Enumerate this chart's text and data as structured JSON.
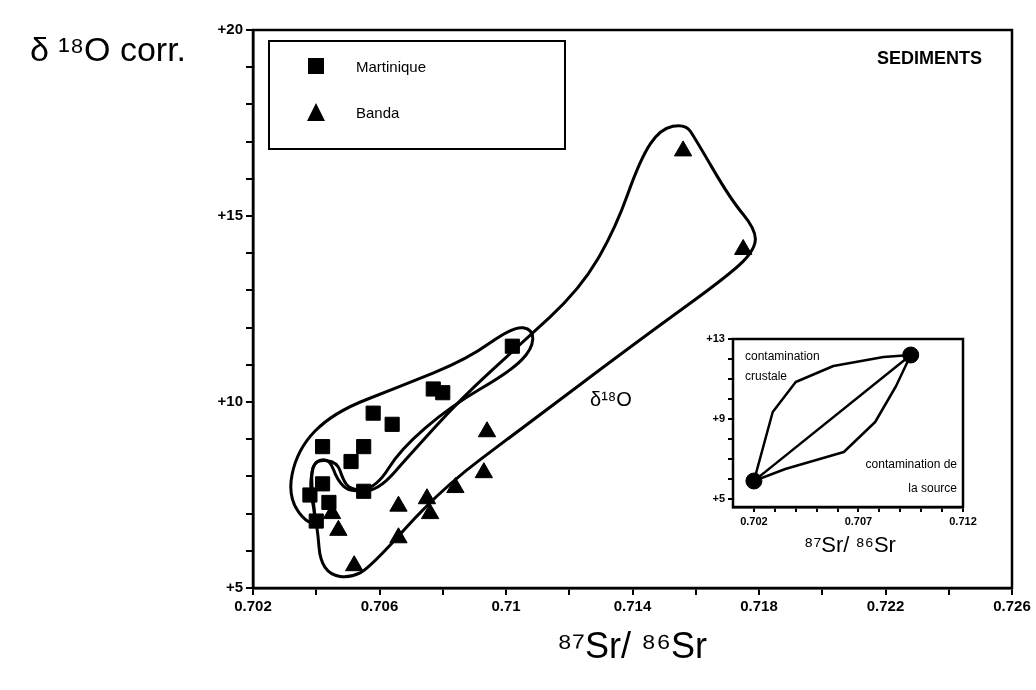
{
  "chart_data": [
    {
      "type": "scatter",
      "xlabel": "⁸⁷Sr/ ⁸⁶Sr",
      "ylabel": "δ ¹⁸O corr.",
      "annotations": [
        "SEDIMENTS"
      ],
      "xlim": [
        0.702,
        0.726
      ],
      "xticks": [
        0.702,
        {
          "value": 0.704,
          "label": null
        },
        0.706,
        {
          "value": 0.708,
          "label": null
        },
        0.71,
        {
          "value": 0.712,
          "label": null
        },
        0.714,
        {
          "value": 0.716,
          "label": null
        },
        0.718,
        {
          "value": 0.72,
          "label": null
        },
        0.722,
        {
          "value": 0.724,
          "label": null
        },
        0.726
      ],
      "ylim": [
        5,
        20
      ],
      "yticks": [
        {
          "value": 5,
          "label": "+5"
        },
        {
          "value": 6,
          "label": null
        },
        {
          "value": 7,
          "label": null
        },
        {
          "value": 8,
          "label": null
        },
        {
          "value": 9,
          "label": null
        },
        {
          "value": 10,
          "label": "+10"
        },
        {
          "value": 11,
          "label": null
        },
        {
          "value": 12,
          "label": null
        },
        {
          "value": 13,
          "label": null
        },
        {
          "value": 14,
          "label": null
        },
        {
          "value": 15,
          "label": "+15"
        },
        {
          "value": 16,
          "label": null
        },
        {
          "value": 17,
          "label": null
        },
        {
          "value": 18,
          "label": null
        },
        {
          "value": 19,
          "label": null
        },
        {
          "value": 20,
          "label": "+20"
        }
      ],
      "grid": false,
      "legend": "top left",
      "series": [
        {
          "name": "Martinique",
          "color": "#000000",
          "marker": "square",
          "x": [
            0.7102,
            0.7077,
            0.708,
            0.7058,
            0.7064,
            0.7055,
            0.7051,
            0.7042,
            0.7055,
            0.7038,
            0.7042,
            0.704,
            0.7044
          ],
          "values": [
            11.5,
            10.35,
            10.25,
            9.7,
            9.4,
            8.8,
            8.4,
            8.8,
            7.6,
            7.5,
            7.8,
            6.8,
            7.3
          ]
        },
        {
          "name": "Banda",
          "color": "#000000",
          "marker": "triangle",
          "x": [
            0.7094,
            0.7093,
            0.7084,
            0.7075,
            0.7076,
            0.7066,
            0.7066,
            0.7047,
            0.7052,
            0.7045,
            0.7156,
            0.7175
          ],
          "values": [
            9.2,
            8.1,
            7.7,
            7.4,
            7.0,
            7.2,
            6.35,
            6.55,
            5.6,
            7.0,
            16.75,
            14.1
          ]
        }
      ]
    },
    {
      "type": "scatter",
      "xlabel": "⁸⁷Sr/ ⁸⁶Sr",
      "ylabel": "δ¹⁸O",
      "annotations": [
        "contamination crustale",
        "contamination de la source"
      ],
      "xlim": [
        0.701,
        0.712
      ],
      "xticks": [
        0.702,
        {
          "value": 0.703,
          "label": null
        },
        {
          "value": 0.704,
          "label": null
        },
        {
          "value": 0.705,
          "label": null
        },
        {
          "value": 0.706,
          "label": null
        },
        0.707,
        {
          "value": 0.708,
          "label": null
        },
        {
          "value": 0.709,
          "label": null
        },
        {
          "value": 0.71,
          "label": null
        },
        {
          "value": 0.711,
          "label": null
        },
        0.712
      ],
      "ylim": [
        4.6,
        13
      ],
      "yticks": [
        {
          "value": 5,
          "label": "+5"
        },
        {
          "value": 6,
          "label": null
        },
        {
          "value": 7,
          "label": null
        },
        {
          "value": 8,
          "label": null
        },
        {
          "value": 9,
          "label": "+9"
        },
        {
          "value": 10,
          "label": null
        },
        {
          "value": 11,
          "label": null
        },
        {
          "value": 12,
          "label": null
        },
        {
          "value": 13,
          "label": "+13"
        }
      ],
      "grid": false,
      "series": [
        {
          "type": "line",
          "color": "#000000",
          "marker": "none",
          "line_style": "solid",
          "x": [
            0.702,
            0.7029,
            0.704,
            0.7058,
            0.7082,
            0.7095
          ],
          "values": [
            5.9,
            9.35,
            10.85,
            11.65,
            12.1,
            12.2
          ]
        },
        {
          "type": "line",
          "color": "#000000",
          "marker": "none",
          "line_style": "solid",
          "x": [
            0.702,
            0.7035,
            0.7063,
            0.7078,
            0.7088,
            0.7095
          ],
          "values": [
            5.9,
            6.5,
            7.35,
            8.85,
            10.65,
            12.2
          ]
        },
        {
          "type": "line",
          "color": "#000000",
          "marker": "none",
          "line_style": "solid",
          "x": [
            0.702,
            0.7095
          ],
          "values": [
            5.9,
            12.2
          ]
        },
        {
          "type": "scatter",
          "color": "#000000",
          "marker": "circle",
          "x": [
            0.702,
            0.7095
          ],
          "values": [
            5.9,
            12.2
          ]
        }
      ]
    }
  ]
}
